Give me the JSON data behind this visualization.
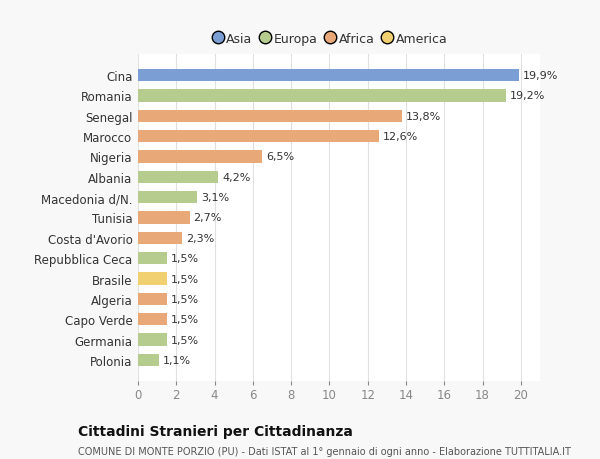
{
  "countries": [
    "Cina",
    "Romania",
    "Senegal",
    "Marocco",
    "Nigeria",
    "Albania",
    "Macedonia d/N.",
    "Tunisia",
    "Costa d'Avorio",
    "Repubblica Ceca",
    "Brasile",
    "Algeria",
    "Capo Verde",
    "Germania",
    "Polonia"
  ],
  "values": [
    19.9,
    19.2,
    13.8,
    12.6,
    6.5,
    4.2,
    3.1,
    2.7,
    2.3,
    1.5,
    1.5,
    1.5,
    1.5,
    1.5,
    1.1
  ],
  "labels": [
    "19,9%",
    "19,2%",
    "13,8%",
    "12,6%",
    "6,5%",
    "4,2%",
    "3,1%",
    "2,7%",
    "2,3%",
    "1,5%",
    "1,5%",
    "1,5%",
    "1,5%",
    "1,5%",
    "1,1%"
  ],
  "colors": [
    "#7b9fd4",
    "#b5cc8e",
    "#e8a878",
    "#e8a878",
    "#e8a878",
    "#b5cc8e",
    "#b5cc8e",
    "#e8a878",
    "#e8a878",
    "#b5cc8e",
    "#f0d070",
    "#e8a878",
    "#e8a878",
    "#b5cc8e",
    "#b5cc8e"
  ],
  "continent_colors": {
    "Asia": "#7b9fd4",
    "Europa": "#b5cc8e",
    "Africa": "#e8a878",
    "America": "#f0d070"
  },
  "legend_labels": [
    "Asia",
    "Europa",
    "Africa",
    "America"
  ],
  "title": "Cittadini Stranieri per Cittadinanza",
  "subtitle": "COMUNE DI MONTE PORZIO (PU) - Dati ISTAT al 1° gennaio di ogni anno - Elaborazione TUTTITALIA.IT",
  "xlim": [
    0,
    21
  ],
  "xticks": [
    0,
    2,
    4,
    6,
    8,
    10,
    12,
    14,
    16,
    18,
    20
  ],
  "plot_bg": "#ffffff",
  "fig_bg": "#f8f8f8",
  "label_color": "#333333",
  "tick_color": "#888888",
  "grid_color": "#e0e0e0"
}
